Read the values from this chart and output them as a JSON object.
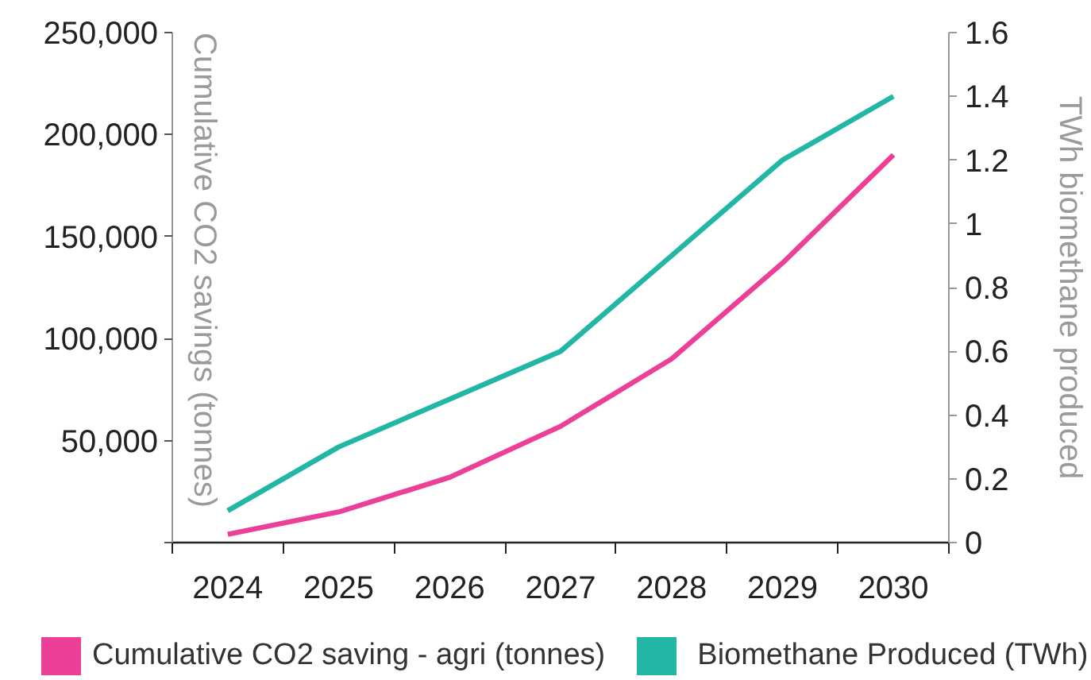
{
  "chart_data": {
    "type": "line",
    "categories": [
      "2024",
      "2025",
      "2026",
      "2027",
      "2028",
      "2029",
      "2030"
    ],
    "ylabel": "Cumulative CO2 savings (tonnes)",
    "y2label": "TWh biomethane produced",
    "ylim": [
      0,
      250000
    ],
    "yticks": [
      {
        "value": 0,
        "label": null
      },
      {
        "value": 50000,
        "label": "50,000"
      },
      {
        "value": 100000,
        "label": "100,000"
      },
      {
        "value": 150000,
        "label": "150,000"
      },
      {
        "value": 200000,
        "label": "200,000"
      },
      {
        "value": 250000,
        "label": "250,000"
      }
    ],
    "y2lim": [
      0,
      1.6
    ],
    "y2ticks": [
      0,
      0.2,
      0.4,
      0.6,
      0.8,
      1,
      1.2,
      1.4,
      1.6
    ],
    "legend": "bottom",
    "series": [
      {
        "name": "Cumulative CO2 saving - agri (tonnes)",
        "color": "#ec3f97",
        "values": [
          4000,
          15000,
          32000,
          57000,
          90000,
          137000,
          190000
        ]
      },
      {
        "name": "Biomethane Produced (TWh)",
        "color": "#21b6a6",
        "axis": "y2",
        "values": [
          0.1,
          0.3,
          0.45,
          0.6,
          0.9,
          1.2,
          1.4
        ]
      }
    ]
  }
}
